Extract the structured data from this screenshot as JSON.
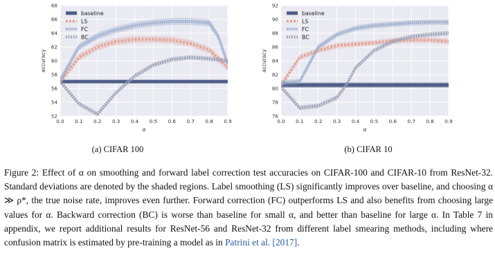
{
  "chart_data": [
    {
      "type": "line",
      "panel": "(a) CIFAR 100",
      "xlabel": "α",
      "ylabel": "accuracy",
      "xlim": [
        0.0,
        0.9
      ],
      "ylim": [
        52,
        68
      ],
      "xticks": [
        "0.0",
        "0.1",
        "0.2",
        "0.3",
        "0.4",
        "0.5",
        "0.6",
        "0.7",
        "0.8",
        "0.9"
      ],
      "yticks": [
        "52",
        "54",
        "56",
        "58",
        "60",
        "62",
        "64",
        "66",
        "68"
      ],
      "grid": true,
      "legend": "top-left",
      "series": [
        {
          "name": "baseline",
          "color": "#4f5d86",
          "style": "solid",
          "x": [
            0.0,
            0.9
          ],
          "y": [
            57.0,
            57.0
          ],
          "band": 0.25
        },
        {
          "name": "LS",
          "color": "#e3a79a",
          "style": "dashed",
          "x": [
            0.0,
            0.1,
            0.2,
            0.3,
            0.4,
            0.5,
            0.6,
            0.7,
            0.8,
            0.9
          ],
          "y": [
            57.0,
            60.5,
            62.0,
            62.8,
            63.1,
            63.1,
            63.0,
            62.5,
            61.6,
            59.0
          ],
          "band": 0.5
        },
        {
          "name": "FC",
          "color": "#93a6c9",
          "style": "dotted",
          "x": [
            0.0,
            0.1,
            0.2,
            0.3,
            0.4,
            0.5,
            0.6,
            0.7,
            0.8,
            0.85,
            0.9
          ],
          "y": [
            57.2,
            62.0,
            63.6,
            64.5,
            65.1,
            65.5,
            65.7,
            65.7,
            65.5,
            63.5,
            59.5
          ],
          "band": 0.5
        },
        {
          "name": "BC",
          "color": "#9aa0b4",
          "style": "dotted-bold",
          "x": [
            0.0,
            0.1,
            0.2,
            0.3,
            0.4,
            0.5,
            0.6,
            0.7,
            0.8,
            0.9
          ],
          "y": [
            57.0,
            53.8,
            52.3,
            55.4,
            57.8,
            59.4,
            60.2,
            60.5,
            60.3,
            60.0
          ],
          "band": 0.35
        }
      ]
    },
    {
      "type": "line",
      "panel": "(b) CIFAR 10",
      "xlabel": "α",
      "ylabel": "accuracy",
      "xlim": [
        0.0,
        0.9
      ],
      "ylim": [
        76,
        92
      ],
      "xticks": [
        "0.0",
        "0.1",
        "0.2",
        "0.3",
        "0.4",
        "0.5",
        "0.6",
        "0.7",
        "0.8",
        "0.9"
      ],
      "yticks": [
        "76",
        "78",
        "80",
        "82",
        "84",
        "86",
        "88",
        "90",
        "92"
      ],
      "grid": true,
      "legend": "top-left",
      "series": [
        {
          "name": "baseline",
          "color": "#4f5d86",
          "style": "solid",
          "x": [
            0.0,
            0.9
          ],
          "y": [
            80.5,
            80.5
          ],
          "band": 0.4
        },
        {
          "name": "LS",
          "color": "#e3a79a",
          "style": "dashed",
          "x": [
            0.0,
            0.1,
            0.2,
            0.3,
            0.4,
            0.5,
            0.6,
            0.7,
            0.8,
            0.9
          ],
          "y": [
            80.5,
            84.5,
            85.5,
            86.2,
            86.4,
            86.6,
            86.9,
            87.0,
            87.0,
            86.8
          ],
          "band": 0.4
        },
        {
          "name": "FC",
          "color": "#93a6c9",
          "style": "dotted",
          "x": [
            0.0,
            0.1,
            0.2,
            0.3,
            0.4,
            0.5,
            0.6,
            0.7,
            0.8,
            0.9
          ],
          "y": [
            80.8,
            81.0,
            86.0,
            87.8,
            88.7,
            89.1,
            89.3,
            89.5,
            89.6,
            89.6
          ],
          "band": 0.4
        },
        {
          "name": "BC",
          "color": "#9aa0b4",
          "style": "dotted-bold",
          "x": [
            0.0,
            0.1,
            0.2,
            0.3,
            0.35,
            0.4,
            0.5,
            0.6,
            0.7,
            0.8,
            0.9
          ],
          "y": [
            80.2,
            77.2,
            77.5,
            78.7,
            80.5,
            83.0,
            85.5,
            86.8,
            87.5,
            87.8,
            88.0
          ],
          "band": 0.35
        }
      ]
    }
  ],
  "subcaptions": {
    "a": "(a) CIFAR 100",
    "b": "(b) CIFAR 10"
  },
  "caption": {
    "text": "Figure 2: Effect of α on smoothing and forward label correction test accuracies on CIFAR-100 and CIFAR-10 from ResNet-32. Standard deviations are denoted by the shaded regions. Label smoothing (LS) significantly improves over baseline, and choosing α ≫ ρ*, the true noise rate, improves even further. Forward correction (FC) outperforms LS and also benefits from choosing large values for α. Backward correction (BC) is worse than baseline for small α, and better than baseline for large α. In Table 7 in appendix, we report additional results for ResNet-56 and ResNet-32 from different label smearing methods, including where confusion matrix is estimated by pre-training a model as in ",
    "citation": "Patrini et al. [2017]",
    "tail": "."
  }
}
